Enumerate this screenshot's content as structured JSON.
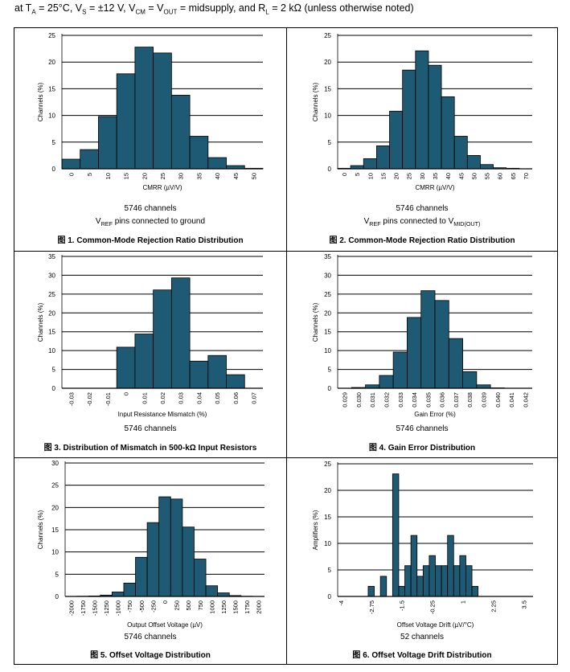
{
  "header": {
    "parts": [
      "at T",
      "A",
      " = 25°C, V",
      "S",
      " = ±12 V, V",
      "CM",
      " = V",
      "OUT",
      " = midsupply, and R",
      "L",
      " = 2 kΩ (unless otherwise noted)"
    ]
  },
  "style": {
    "bar_fill": "#1f5a74",
    "bar_stroke": "#000000",
    "grid": "#000000"
  },
  "chart_data": [
    {
      "type": "bar",
      "title": "图 1. Common-Mode Rejection Ratio Distribution",
      "xlabel": "CMRR (µV/V)",
      "ylabel": "Channels (%)",
      "ylim": [
        0,
        25
      ],
      "yticks": [
        0,
        5,
        10,
        15,
        20,
        25
      ],
      "categories": [
        "0",
        "5",
        "10",
        "15",
        "20",
        "25",
        "30",
        "35",
        "40",
        "45",
        "50"
      ],
      "values": [
        1.8,
        3.6,
        9.8,
        17.8,
        22.8,
        21.7,
        13.8,
        6.1,
        2.1,
        0.6,
        0.1
      ],
      "notes": [
        {
          "parts": [
            "5746 channels"
          ]
        },
        {
          "parts": [
            "V",
            "REF",
            " pins connected to ground"
          ]
        }
      ]
    },
    {
      "type": "bar",
      "title": "图 2. Common-Mode Rejection Ratio Distribution",
      "xlabel": "CMRR (µV/V)",
      "ylabel": "Channels (%)",
      "ylim": [
        0,
        25
      ],
      "yticks": [
        0,
        5,
        10,
        15,
        20,
        25
      ],
      "categories": [
        "0",
        "5",
        "10",
        "15",
        "20",
        "25",
        "30",
        "35",
        "40",
        "45",
        "50",
        "55",
        "60",
        "65",
        "70"
      ],
      "values": [
        0.1,
        0.6,
        1.9,
        4.3,
        10.8,
        18.5,
        22.1,
        19.4,
        13.5,
        6.1,
        2.5,
        0.8,
        0.2,
        0.1,
        0.0
      ],
      "notes": [
        {
          "parts": [
            "5746 channels"
          ]
        },
        {
          "parts": [
            "V",
            "REF",
            " pins connected to V",
            "MID(OUT)",
            ""
          ]
        }
      ]
    },
    {
      "type": "bar",
      "title": "图 3. Distribution of Mismatch in 500-kΩ Input Resistors",
      "xlabel": "Input Resistance Mismatch (%)",
      "ylabel": "Channels (%)",
      "ylim": [
        0,
        35
      ],
      "yticks": [
        0,
        5,
        10,
        15,
        20,
        25,
        30,
        35
      ],
      "categories": [
        "-0.03",
        "-0.02",
        "-0.01",
        "0",
        "0.01",
        "0.02",
        "0.03",
        "0.04",
        "0.05",
        "0.06",
        "0.07"
      ],
      "values": [
        0,
        0,
        0,
        10.9,
        14.4,
        26.1,
        29.3,
        7.2,
        8.7,
        3.6,
        0
      ],
      "notes": [
        {
          "parts": [
            "5746 channels"
          ]
        }
      ]
    },
    {
      "type": "bar",
      "title": "图 4. Gain Error Distribution",
      "xlabel": "Gain Error (%)",
      "ylabel": "Channels (%)",
      "ylim": [
        0,
        35
      ],
      "yticks": [
        0,
        5,
        10,
        15,
        20,
        25,
        30,
        35
      ],
      "categories": [
        "0.029",
        "0.030",
        "0.031",
        "0.032",
        "0.033",
        "0.034",
        "0.035",
        "0.036",
        "0.037",
        "0.038",
        "0.039",
        "0.040",
        "0.041",
        "0.042"
      ],
      "values": [
        0,
        0.2,
        0.9,
        3.4,
        9.6,
        18.8,
        25.9,
        23.3,
        13.2,
        4.4,
        0.9,
        0.1,
        0,
        0
      ],
      "notes": [
        {
          "parts": [
            "5746 channels"
          ]
        }
      ]
    },
    {
      "type": "bar",
      "title": "图 5. Offset Voltage Distribution",
      "xlabel": "Output Offset Voltage (µV)",
      "ylabel": "Channels (%)",
      "ylim": [
        0,
        30
      ],
      "yticks": [
        0,
        5,
        10,
        15,
        20,
        25,
        30
      ],
      "categories": [
        "-2000",
        "-1750",
        "-1500",
        "-1250",
        "-1000",
        "-750",
        "-500",
        "-250",
        "0",
        "250",
        "500",
        "750",
        "1000",
        "1250",
        "1500",
        "1750",
        "2000"
      ],
      "values": [
        0,
        0.05,
        0.1,
        0.3,
        1.0,
        3.0,
        8.8,
        16.6,
        22.4,
        21.9,
        15.6,
        8.4,
        2.4,
        0.8,
        0.2,
        0.05,
        0
      ],
      "notes": [
        {
          "parts": [
            "5746 channels"
          ]
        }
      ]
    },
    {
      "type": "bar",
      "title": "图 6. Offset Voltage Drift Distribution",
      "xlabel": "Offset Voltage Drift (µV/°C)",
      "ylabel": "Amplifiers (%)",
      "ylim": [
        0,
        25
      ],
      "yticks": [
        0,
        5,
        10,
        15,
        20,
        25
      ],
      "categories": [
        "-4",
        "-3.75",
        "-3.5",
        "-3.25",
        "-3",
        "-2.75",
        "-2.5",
        "-2.25",
        "-2",
        "-1.75",
        "-1.5",
        "-1.25",
        "-1",
        "-0.75",
        "-0.5",
        "-0.25",
        "0",
        "0.25",
        "0.5",
        "0.75",
        "1",
        "1.25",
        "1.5",
        "1.75",
        "2",
        "2.25",
        "2.5",
        "2.75",
        "3",
        "3.25",
        "3.5",
        "3.75"
      ],
      "values": [
        0,
        0,
        0,
        0,
        0,
        1.9,
        0,
        3.8,
        0,
        23.1,
        1.9,
        5.8,
        11.5,
        3.8,
        5.8,
        7.7,
        5.8,
        5.8,
        11.5,
        5.8,
        7.7,
        5.8,
        1.9,
        0,
        0,
        0,
        0,
        0,
        0,
        0,
        0,
        0
      ],
      "xticks": [
        "-4",
        "-2.75",
        "-1.5",
        "-0.25",
        "1",
        "2.25",
        "3.5"
      ],
      "notes": [
        {
          "parts": [
            "52 channels"
          ]
        }
      ]
    }
  ]
}
